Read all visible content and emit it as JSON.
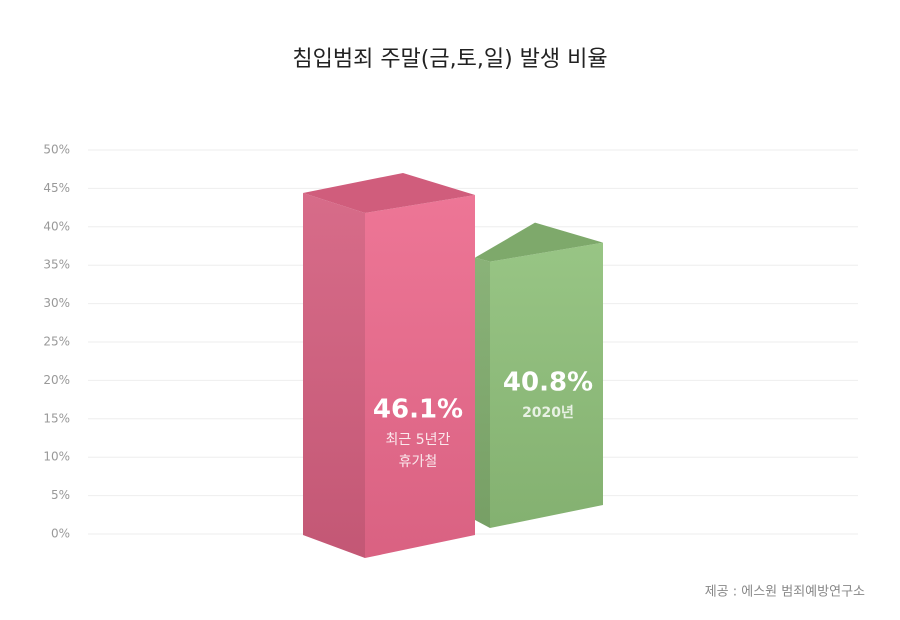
{
  "chart_data": {
    "type": "bar3d",
    "title": "침입범죄 주말(금,토,일) 발생 비율",
    "categories": [
      [
        "최근 5년간",
        "휴가철"
      ],
      [
        "2020년"
      ]
    ],
    "values": [
      46.1,
      40.8
    ],
    "value_labels": [
      "46.1%",
      "40.8%"
    ],
    "colors": [
      "#ec6a8d",
      "#8fc07a"
    ],
    "ylim": [
      0,
      50
    ],
    "yticks": [
      {
        "value": 0,
        "label": "0%"
      },
      {
        "value": 5,
        "label": "5%"
      },
      {
        "value": 10,
        "label": "10%"
      },
      {
        "value": 15,
        "label": "15%"
      },
      {
        "value": 20,
        "label": "20%"
      },
      {
        "value": 25,
        "label": "25%"
      },
      {
        "value": 30,
        "label": "30%"
      },
      {
        "value": 35,
        "label": "35%"
      },
      {
        "value": 40,
        "label": "40%"
      },
      {
        "value": 45,
        "label": "45%"
      },
      {
        "value": 50,
        "label": "50%"
      }
    ],
    "grid": true,
    "source": "제공 : 에스원 범죄예방연구소"
  }
}
